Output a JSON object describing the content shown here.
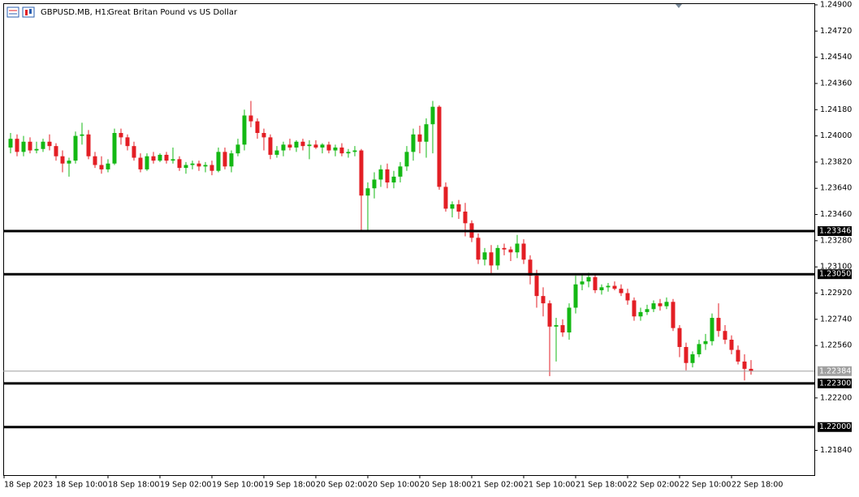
{
  "chart_data": {
    "type": "candlestick",
    "symbol": "GBPUSD.MB, H1:",
    "title": "Great Britan Pound vs US Dollar",
    "up_color": "#14b814",
    "down_color": "#e31e24",
    "x_labels": [
      "18 Sep 2023",
      "18 Sep 10:00",
      "18 Sep 18:00",
      "19 Sep 02:00",
      "19 Sep 10:00",
      "19 Sep 18:00",
      "20 Sep 02:00",
      "20 Sep 10:00",
      "20 Sep 18:00",
      "21 Sep 02:00",
      "21 Sep 10:00",
      "21 Sep 18:00",
      "22 Sep 02:00",
      "22 Sep 10:00",
      "22 Sep 18:00"
    ],
    "ylim": [
      1.2167,
      1.24911
    ],
    "yticks": [
      {
        "value": 1.249,
        "label": "1.24900"
      },
      {
        "value": 1.2472,
        "label": "1.24720"
      },
      {
        "value": 1.2454,
        "label": "1.24540"
      },
      {
        "value": 1.2436,
        "label": "1.24360"
      },
      {
        "value": 1.2418,
        "label": "1.24180"
      },
      {
        "value": 1.24,
        "label": "1.24000"
      },
      {
        "value": 1.2382,
        "label": "1.23820"
      },
      {
        "value": 1.2364,
        "label": "1.23640"
      },
      {
        "value": 1.2346,
        "label": "1.23460"
      },
      {
        "value": 1.2328,
        "label": "1.23280"
      },
      {
        "value": 1.231,
        "label": "1.23100"
      },
      {
        "value": 1.2292,
        "label": "1.22920"
      },
      {
        "value": 1.2274,
        "label": "1.22740"
      },
      {
        "value": 1.2256,
        "label": "1.22560"
      },
      {
        "value": 1.222,
        "label": "1.22200"
      },
      {
        "value": 1.2184,
        "label": "1.21840"
      }
    ],
    "levels": [
      {
        "value": 1.23346,
        "label": "1.23346"
      },
      {
        "value": 1.2305,
        "label": "1.23050"
      },
      {
        "value": 1.223,
        "label": "1.22300"
      },
      {
        "value": 1.22,
        "label": "1.22000"
      }
    ],
    "current_price": {
      "value": 1.22384,
      "label": "1.22384"
    },
    "ohlc": [
      [
        1.2392,
        1.2402,
        1.2388,
        1.2398
      ],
      [
        1.2398,
        1.2401,
        1.2386,
        1.2389
      ],
      [
        1.2389,
        1.24,
        1.2386,
        1.2396
      ],
      [
        1.2396,
        1.2399,
        1.2388,
        1.239
      ],
      [
        1.239,
        1.2396,
        1.2388,
        1.2391
      ],
      [
        1.2391,
        1.2398,
        1.2389,
        1.2396
      ],
      [
        1.2396,
        1.2401,
        1.239,
        1.2393
      ],
      [
        1.2393,
        1.2395,
        1.2383,
        1.2386
      ],
      [
        1.2386,
        1.239,
        1.2375,
        1.2381
      ],
      [
        1.2381,
        1.2385,
        1.2372,
        1.2383
      ],
      [
        1.2383,
        1.2403,
        1.2381,
        1.24
      ],
      [
        1.24,
        1.2409,
        1.2394,
        1.2401
      ],
      [
        1.2401,
        1.2404,
        1.2384,
        1.2386
      ],
      [
        1.2386,
        1.2389,
        1.2378,
        1.238
      ],
      [
        1.238,
        1.2386,
        1.2374,
        1.2377
      ],
      [
        1.2377,
        1.2384,
        1.2375,
        1.2381
      ],
      [
        1.2381,
        1.2405,
        1.238,
        1.2402
      ],
      [
        1.2402,
        1.2405,
        1.2394,
        1.2399
      ],
      [
        1.2399,
        1.2401,
        1.239,
        1.2393
      ],
      [
        1.2393,
        1.2396,
        1.2383,
        1.2385
      ],
      [
        1.2385,
        1.2388,
        1.2375,
        1.2377
      ],
      [
        1.2377,
        1.2388,
        1.2376,
        1.2386
      ],
      [
        1.2386,
        1.2389,
        1.2381,
        1.2383
      ],
      [
        1.2383,
        1.2388,
        1.2382,
        1.2387
      ],
      [
        1.2387,
        1.2389,
        1.2381,
        1.2383
      ],
      [
        1.2383,
        1.2392,
        1.2381,
        1.2384
      ],
      [
        1.2384,
        1.2386,
        1.2376,
        1.2378
      ],
      [
        1.2378,
        1.2382,
        1.2374,
        1.238
      ],
      [
        1.238,
        1.2383,
        1.2377,
        1.2381
      ],
      [
        1.2381,
        1.2383,
        1.2376,
        1.2379
      ],
      [
        1.2379,
        1.2382,
        1.2375,
        1.238
      ],
      [
        1.238,
        1.2383,
        1.2373,
        1.2376
      ],
      [
        1.2376,
        1.2392,
        1.2375,
        1.2389
      ],
      [
        1.2389,
        1.2392,
        1.2377,
        1.2379
      ],
      [
        1.2379,
        1.239,
        1.2375,
        1.2388
      ],
      [
        1.2388,
        1.2398,
        1.2386,
        1.2394
      ],
      [
        1.2394,
        1.2418,
        1.239,
        1.2414
      ],
      [
        1.2414,
        1.2424,
        1.2406,
        1.241
      ],
      [
        1.241,
        1.2412,
        1.2398,
        1.2402
      ],
      [
        1.2402,
        1.2405,
        1.239,
        1.2399
      ],
      [
        1.2399,
        1.2401,
        1.2384,
        1.2387
      ],
      [
        1.2387,
        1.2393,
        1.2385,
        1.239
      ],
      [
        1.239,
        1.2396,
        1.2386,
        1.2394
      ],
      [
        1.2394,
        1.2398,
        1.239,
        1.2392
      ],
      [
        1.2392,
        1.2397,
        1.2389,
        1.2396
      ],
      [
        1.2396,
        1.2398,
        1.239,
        1.2393
      ],
      [
        1.2393,
        1.2397,
        1.2384,
        1.2394
      ],
      [
        1.2394,
        1.2397,
        1.2391,
        1.2392
      ],
      [
        1.2392,
        1.2395,
        1.2388,
        1.2394
      ],
      [
        1.2394,
        1.2396,
        1.2388,
        1.239
      ],
      [
        1.239,
        1.2394,
        1.2386,
        1.2392
      ],
      [
        1.2392,
        1.2395,
        1.2386,
        1.2388
      ],
      [
        1.2388,
        1.2391,
        1.2385,
        1.2389
      ],
      [
        1.2389,
        1.2393,
        1.2386,
        1.239
      ],
      [
        1.239,
        1.2391,
        1.2334,
        1.2359
      ],
      [
        1.2359,
        1.2368,
        1.2334,
        1.2364
      ],
      [
        1.2364,
        1.2375,
        1.2357,
        1.237
      ],
      [
        1.237,
        1.238,
        1.2365,
        1.2377
      ],
      [
        1.2377,
        1.2381,
        1.2364,
        1.2368
      ],
      [
        1.2368,
        1.2376,
        1.2364,
        1.2372
      ],
      [
        1.2372,
        1.2382,
        1.2368,
        1.2379
      ],
      [
        1.2379,
        1.2393,
        1.2376,
        1.2389
      ],
      [
        1.2389,
        1.2405,
        1.2383,
        1.2401
      ],
      [
        1.2401,
        1.2407,
        1.2388,
        1.2396
      ],
      [
        1.2396,
        1.2412,
        1.2385,
        1.2408
      ],
      [
        1.2408,
        1.2424,
        1.2388,
        1.242
      ],
      [
        1.242,
        1.2421,
        1.2363,
        1.2365
      ],
      [
        1.2365,
        1.2368,
        1.2348,
        1.235
      ],
      [
        1.235,
        1.2355,
        1.2344,
        1.2353
      ],
      [
        1.2353,
        1.2356,
        1.2343,
        1.2348
      ],
      [
        1.2348,
        1.2354,
        1.2331,
        1.234
      ],
      [
        1.234,
        1.2342,
        1.2327,
        1.233
      ],
      [
        1.233,
        1.2333,
        1.2312,
        1.2315
      ],
      [
        1.2315,
        1.2323,
        1.2311,
        1.232
      ],
      [
        1.232,
        1.2325,
        1.2305,
        1.2311
      ],
      [
        1.2311,
        1.2325,
        1.2308,
        1.2323
      ],
      [
        1.2323,
        1.2326,
        1.2318,
        1.2322
      ],
      [
        1.2322,
        1.2324,
        1.2314,
        1.232
      ],
      [
        1.232,
        1.2332,
        1.2316,
        1.2326
      ],
      [
        1.2326,
        1.2329,
        1.2312,
        1.2315
      ],
      [
        1.2315,
        1.2318,
        1.2298,
        1.2304
      ],
      [
        1.2304,
        1.2308,
        1.2282,
        1.229
      ],
      [
        1.229,
        1.2296,
        1.2276,
        1.2285
      ],
      [
        1.2285,
        1.2287,
        1.2235,
        1.2269
      ],
      [
        1.2269,
        1.2275,
        1.2245,
        1.227
      ],
      [
        1.227,
        1.2274,
        1.2262,
        1.2265
      ],
      [
        1.2265,
        1.2285,
        1.226,
        1.2282
      ],
      [
        1.2282,
        1.2304,
        1.2278,
        1.2298
      ],
      [
        1.2298,
        1.2305,
        1.2294,
        1.23
      ],
      [
        1.23,
        1.2306,
        1.2296,
        1.2303
      ],
      [
        1.2303,
        1.2305,
        1.2292,
        1.2294
      ],
      [
        1.2294,
        1.2298,
        1.2291,
        1.2296
      ],
      [
        1.2296,
        1.2299,
        1.2293,
        1.2297
      ],
      [
        1.2297,
        1.23,
        1.2294,
        1.2295
      ],
      [
        1.2295,
        1.2298,
        1.229,
        1.2292
      ],
      [
        1.2292,
        1.2295,
        1.2284,
        1.2287
      ],
      [
        1.2287,
        1.2289,
        1.2273,
        1.2276
      ],
      [
        1.2276,
        1.2282,
        1.2273,
        1.2279
      ],
      [
        1.2279,
        1.2284,
        1.2277,
        1.2281
      ],
      [
        1.2281,
        1.2287,
        1.2279,
        1.2285
      ],
      [
        1.2285,
        1.2288,
        1.228,
        1.2283
      ],
      [
        1.2283,
        1.2289,
        1.2281,
        1.2286
      ],
      [
        1.2286,
        1.2288,
        1.2266,
        1.2268
      ],
      [
        1.2268,
        1.227,
        1.2248,
        1.2255
      ],
      [
        1.2255,
        1.2258,
        1.2239,
        1.2244
      ],
      [
        1.2244,
        1.2252,
        1.2241,
        1.225
      ],
      [
        1.225,
        1.226,
        1.2248,
        1.2257
      ],
      [
        1.2257,
        1.2264,
        1.2253,
        1.2259
      ],
      [
        1.2259,
        1.2278,
        1.2256,
        1.2275
      ],
      [
        1.2275,
        1.2285,
        1.2262,
        1.2266
      ],
      [
        1.2266,
        1.227,
        1.2257,
        1.226
      ],
      [
        1.226,
        1.2263,
        1.225,
        1.2253
      ],
      [
        1.2253,
        1.2256,
        1.2243,
        1.2245
      ],
      [
        1.2245,
        1.225,
        1.2232,
        1.224
      ],
      [
        1.224,
        1.2246,
        1.2236,
        1.22384
      ]
    ]
  }
}
